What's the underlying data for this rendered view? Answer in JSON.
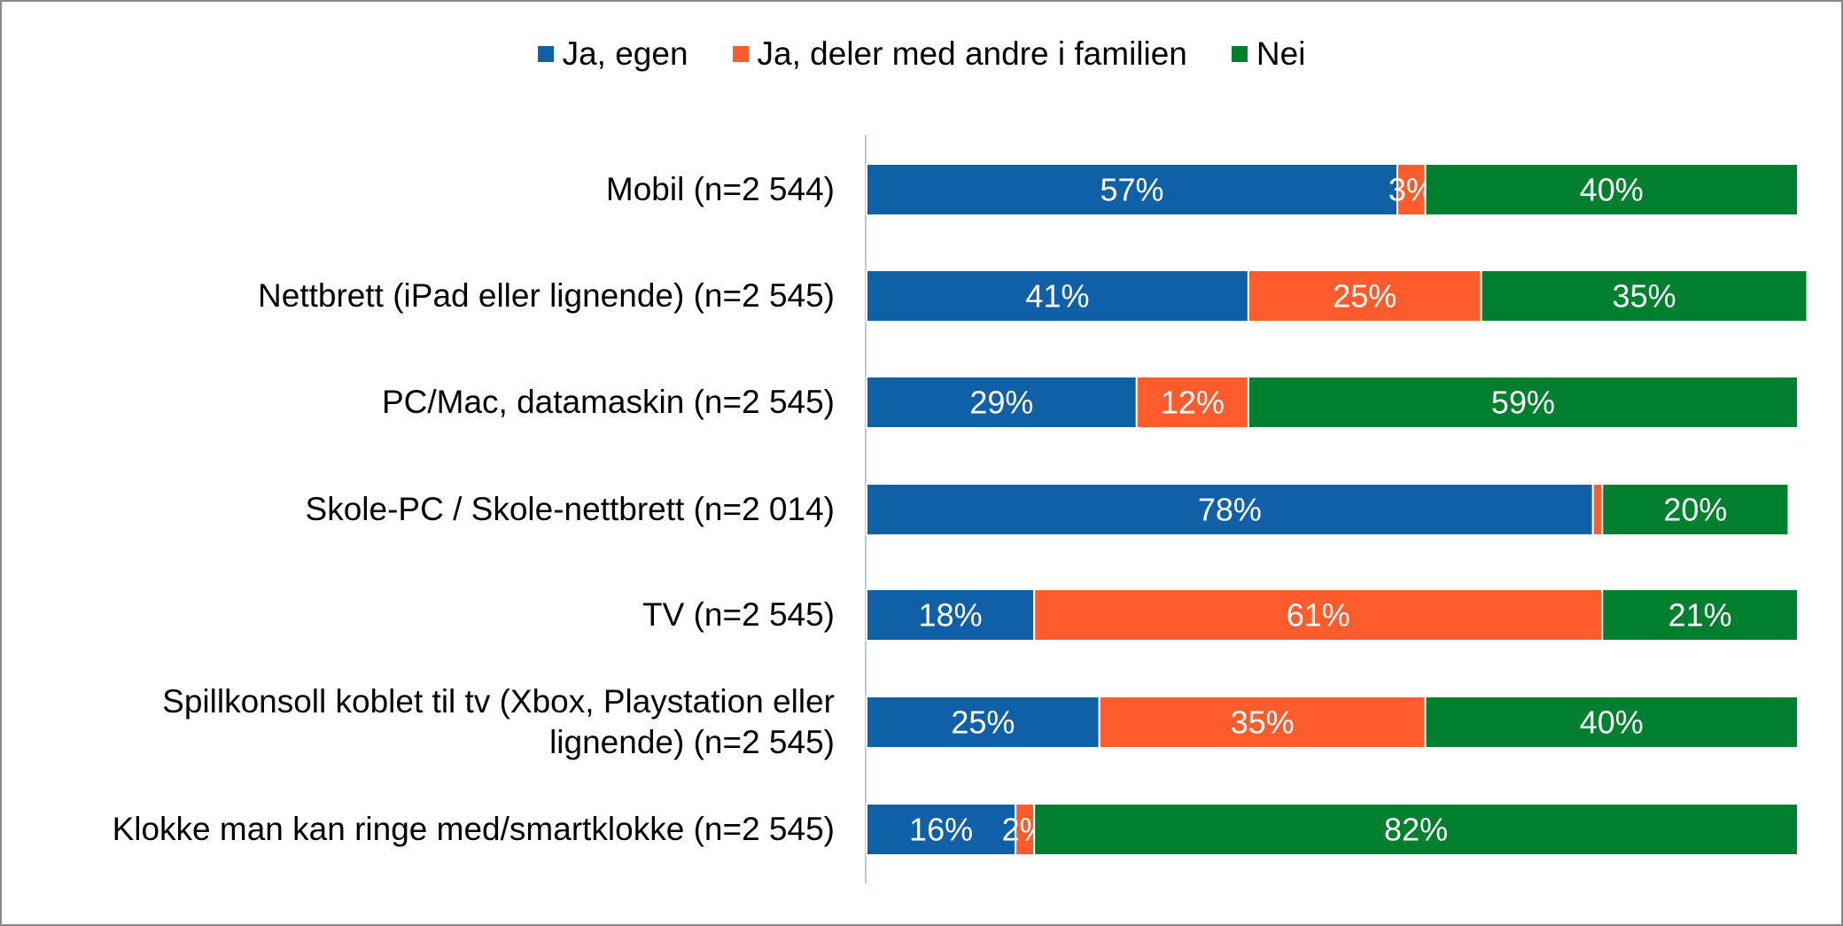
{
  "chart_data": {
    "type": "stacked-bar-horizontal",
    "categories": [
      "Mobil (n=2 544)",
      "Nettbrett (iPad eller lignende) (n=2 545)",
      "PC/Mac, datamaskin (n=2 545)",
      "Skole-PC / Skole-nettbrett (n=2 014)",
      "TV (n=2 545)",
      "Spillkonsoll koblet til tv (Xbox, Playstation eller lignende) (n=2 545)",
      "Klokke man kan ringe med/smartklokke (n=2 545)"
    ],
    "series": [
      {
        "name": "Ja, egen",
        "color": "#1060a8",
        "values": [
          57,
          41,
          29,
          78,
          18,
          25,
          16
        ],
        "value_labels": [
          "57%",
          "41%",
          "29%",
          "78%",
          "18%",
          "25%",
          "16%"
        ]
      },
      {
        "name": "Ja, deler med andre i familien",
        "color": "#ff5c2e",
        "values": [
          3,
          25,
          12,
          1,
          61,
          35,
          2
        ],
        "value_labels": [
          "3%",
          "25%",
          "12%",
          null,
          "61%",
          "35%",
          "2%"
        ]
      },
      {
        "name": "Nei",
        "color": "#00802f",
        "values": [
          40,
          35,
          59,
          20,
          21,
          40,
          82
        ],
        "value_labels": [
          "40%",
          "35%",
          "59%",
          "20%",
          "21%",
          "40%",
          "82%"
        ]
      }
    ],
    "xlim": [
      0,
      100
    ],
    "legend": "top"
  }
}
